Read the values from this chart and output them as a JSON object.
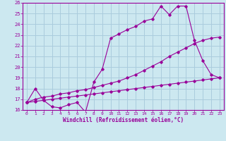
{
  "xlabel": "Windchill (Refroidissement éolien,°C)",
  "bg_color": "#cce8f0",
  "line_color": "#990099",
  "grid_color": "#aaccdd",
  "xlim": [
    -0.5,
    23.5
  ],
  "ylim": [
    16,
    26
  ],
  "xticks": [
    0,
    1,
    2,
    3,
    4,
    5,
    6,
    7,
    8,
    9,
    10,
    11,
    12,
    13,
    14,
    15,
    16,
    17,
    18,
    19,
    20,
    21,
    22,
    23
  ],
  "yticks": [
    16,
    17,
    18,
    19,
    20,
    21,
    22,
    23,
    24,
    25,
    26
  ],
  "line1_x": [
    0,
    1,
    2,
    3,
    4,
    5,
    6,
    7,
    8,
    9,
    10,
    11,
    12,
    13,
    14,
    15,
    16,
    17,
    18,
    19,
    20,
    21,
    22,
    23
  ],
  "line1_y": [
    16.7,
    18.0,
    16.9,
    16.3,
    16.2,
    16.5,
    16.7,
    15.8,
    18.6,
    19.8,
    22.7,
    23.1,
    23.5,
    23.8,
    24.3,
    24.5,
    25.7,
    24.9,
    25.7,
    25.7,
    22.5,
    20.6,
    19.3,
    19.0
  ],
  "line2_x": [
    0,
    1,
    2,
    3,
    4,
    5,
    6,
    7,
    8,
    9,
    10,
    11,
    12,
    13,
    14,
    15,
    16,
    17,
    18,
    19,
    20,
    21,
    22,
    23
  ],
  "line2_y": [
    16.7,
    17.0,
    17.2,
    17.3,
    17.5,
    17.6,
    17.8,
    17.9,
    18.1,
    18.3,
    18.5,
    18.7,
    19.0,
    19.3,
    19.7,
    20.1,
    20.5,
    21.0,
    21.4,
    21.8,
    22.2,
    22.5,
    22.7,
    22.8
  ],
  "line3_x": [
    0,
    1,
    2,
    3,
    4,
    5,
    6,
    7,
    8,
    9,
    10,
    11,
    12,
    13,
    14,
    15,
    16,
    17,
    18,
    19,
    20,
    21,
    22,
    23
  ],
  "line3_y": [
    16.7,
    16.8,
    16.9,
    17.0,
    17.1,
    17.2,
    17.3,
    17.4,
    17.5,
    17.6,
    17.7,
    17.8,
    17.9,
    18.0,
    18.1,
    18.2,
    18.3,
    18.4,
    18.5,
    18.6,
    18.7,
    18.8,
    18.9,
    19.0
  ]
}
